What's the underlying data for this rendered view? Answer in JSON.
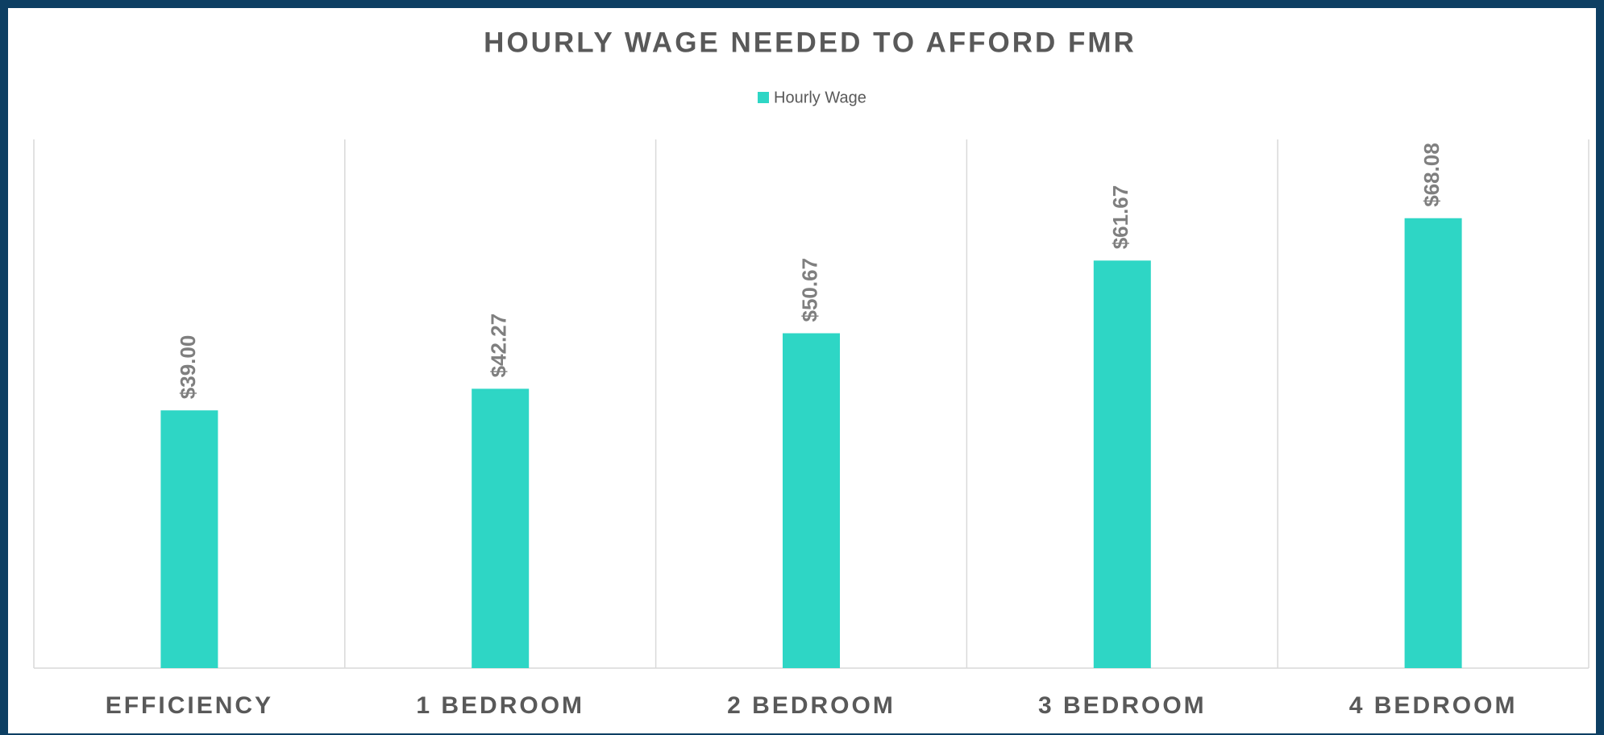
{
  "chart_data": {
    "type": "bar",
    "title": "HOURLY WAGE NEEDED TO AFFORD FMR",
    "categories": [
      "EFFICIENCY",
      "1 BEDROOM",
      "2 BEDROOM",
      "3 BEDROOM",
      "4 BEDROOM"
    ],
    "series": [
      {
        "name": "Hourly Wage",
        "color": "#2ed6c5",
        "values": [
          39.0,
          42.27,
          50.67,
          61.67,
          68.08
        ],
        "value_labels": [
          "$39.00",
          "$42.27",
          "$50.67",
          "$61.67",
          "$68.08"
        ]
      }
    ],
    "ylim": [
      0,
      80
    ],
    "legend": "top"
  }
}
